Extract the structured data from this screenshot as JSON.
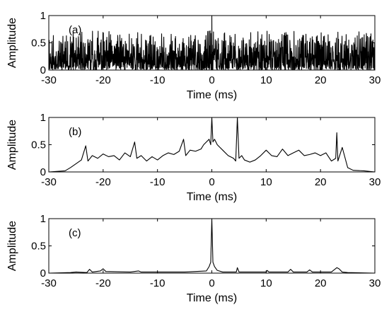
{
  "chart_data": [
    {
      "type": "line",
      "panel_label": "(a)",
      "xlabel": "Time (ms)",
      "ylabel": "Amplitude",
      "xlim": [
        -30,
        30
      ],
      "ylim": [
        0,
        1
      ],
      "xticks": [
        -30,
        -20,
        -10,
        0,
        10,
        20,
        30
      ],
      "yticks": [
        0,
        0.5,
        1
      ],
      "ytick_labels": [
        "0",
        "0.5",
        "1"
      ],
      "grid": false,
      "series": [
        {
          "color": "#000000",
          "noise": {
            "description": "dense noise-like trace",
            "step_ms": 0.04,
            "max_amplitude": 0.72,
            "seed": 11
          },
          "peaks": [
            {
              "x": 0,
              "y": 1.0
            },
            {
              "x": -0.3,
              "y": 0.72
            },
            {
              "x": 0.3,
              "y": 0.7
            }
          ]
        }
      ]
    },
    {
      "type": "line",
      "panel_label": "(b)",
      "xlabel": "Time (ms)",
      "ylabel": "Amplitude",
      "xlim": [
        -30,
        30
      ],
      "ylim": [
        0,
        1
      ],
      "xticks": [
        -30,
        -20,
        -10,
        0,
        10,
        20,
        30
      ],
      "yticks": [
        0,
        0.5,
        1
      ],
      "ytick_labels": [
        "0",
        "0.5",
        "1"
      ],
      "grid": false,
      "series": [
        {
          "color": "#000000",
          "x": [
            -30,
            -27,
            -26,
            -25,
            -24,
            -23.2,
            -22.8,
            -22,
            -21,
            -20,
            -19,
            -18,
            -17,
            -16,
            -15,
            -14.2,
            -13.8,
            -13,
            -12,
            -11,
            -10,
            -9,
            -8,
            -7,
            -6,
            -5.2,
            -4.8,
            -4,
            -3,
            -2,
            -1.5,
            -1,
            -0.5,
            -0.2,
            0,
            0.2,
            0.5,
            1,
            1.5,
            2,
            3,
            4,
            4.4,
            4.7,
            5,
            5.5,
            6,
            7,
            8,
            9,
            10,
            11,
            12,
            13,
            14,
            15,
            16,
            17,
            18,
            19,
            20,
            21,
            22,
            22.8,
            23,
            23.2,
            24,
            25,
            26,
            28,
            30
          ],
          "y": [
            0,
            0.02,
            0.08,
            0.15,
            0.22,
            0.48,
            0.2,
            0.3,
            0.25,
            0.33,
            0.28,
            0.3,
            0.22,
            0.35,
            0.28,
            0.55,
            0.25,
            0.3,
            0.2,
            0.28,
            0.22,
            0.3,
            0.35,
            0.32,
            0.38,
            0.6,
            0.3,
            0.4,
            0.38,
            0.42,
            0.5,
            0.55,
            0.6,
            0.5,
            1.0,
            0.55,
            0.6,
            0.5,
            0.45,
            0.4,
            0.3,
            0.25,
            0.2,
            1.0,
            0.25,
            0.3,
            0.22,
            0.18,
            0.22,
            0.3,
            0.4,
            0.3,
            0.28,
            0.42,
            0.3,
            0.35,
            0.4,
            0.3,
            0.32,
            0.35,
            0.3,
            0.35,
            0.2,
            0.25,
            0.72,
            0.2,
            0.45,
            0.08,
            0.03,
            0.02,
            0
          ]
        }
      ]
    },
    {
      "type": "line",
      "panel_label": "(c)",
      "xlabel": "Time (ms)",
      "ylabel": "Amplitude",
      "xlim": [
        -30,
        30
      ],
      "ylim": [
        0,
        1
      ],
      "xticks": [
        -30,
        -20,
        -10,
        0,
        10,
        20,
        30
      ],
      "yticks": [
        0,
        0.5,
        1
      ],
      "ytick_labels": [
        "0",
        "0.5",
        "1"
      ],
      "grid": false,
      "series": [
        {
          "color": "#000000",
          "x": [
            -30,
            -26,
            -25,
            -23,
            -22.5,
            -22,
            -20.5,
            -20,
            -19.5,
            -15,
            -13.5,
            -13,
            -10,
            -5,
            -1,
            -0.5,
            -0.2,
            0,
            0.2,
            0.5,
            1,
            2,
            4.5,
            4.7,
            5,
            8,
            10,
            10.2,
            10.5,
            13,
            14,
            14.5,
            15,
            17.5,
            18,
            18.5,
            22,
            23,
            23.4,
            24,
            25,
            30
          ],
          "y": [
            0,
            0.01,
            0.02,
            0.01,
            0.07,
            0.02,
            0.04,
            0.08,
            0.03,
            0.02,
            0.04,
            0.02,
            0.02,
            0.02,
            0.04,
            0.12,
            0.2,
            1.0,
            0.2,
            0.12,
            0.05,
            0.02,
            0.02,
            0.1,
            0.02,
            0.02,
            0.02,
            0.05,
            0.02,
            0.02,
            0.02,
            0.07,
            0.02,
            0.02,
            0.06,
            0.02,
            0.02,
            0.1,
            0.08,
            0.02,
            0.01,
            0
          ]
        }
      ]
    }
  ]
}
